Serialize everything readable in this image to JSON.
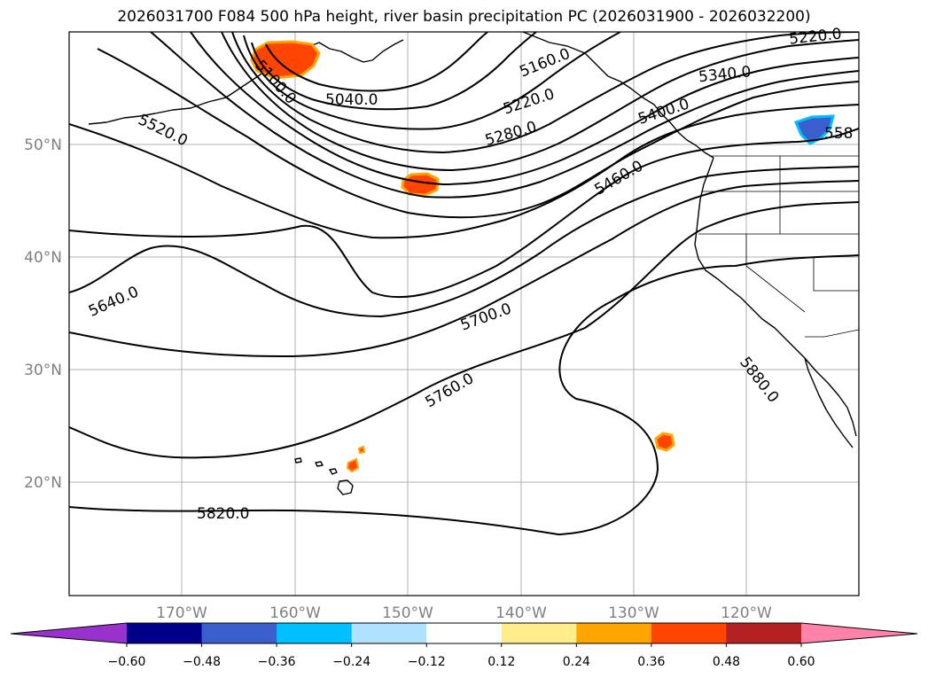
{
  "title": "2026031700 F084 500 hPa height, river basin precipitation PC (2026031900 - 2026032200)",
  "latitude_labels": [
    "50°N",
    "40°N",
    "30°N",
    "20°N"
  ],
  "longitude_labels": [
    "170°W",
    "160°W",
    "150°W",
    "140°W",
    "130°W",
    "120°W"
  ],
  "contour_labels": [
    "5040.0",
    "5100.0",
    "5160.0",
    "5220.0",
    "5220.0",
    "5280.0",
    "5340.0",
    "5400.0",
    "5460.0",
    "5520.0",
    "558",
    "5640.0",
    "5700.0",
    "5760.0",
    "5820.0",
    "5880.0"
  ],
  "colorbar": {
    "tick_labels": [
      "−0.60",
      "−0.48",
      "−0.36",
      "−0.24",
      "−0.12",
      "0.12",
      "0.24",
      "0.36",
      "0.48",
      "0.60"
    ],
    "colors": [
      "#9932cc",
      "#00008b",
      "#3a5fcd",
      "#00bfff",
      "#b0e2ff",
      "#ffffff",
      "#ffec8b",
      "#ffa500",
      "#ff4500",
      "#b22222",
      "#ff82ab"
    ]
  },
  "map_colors": {
    "contour": "#000000",
    "coastline": "#000000",
    "gridline": "#b0b0b0",
    "precip_positive": "#ff4500",
    "precip_positive_edge": "#ffa500",
    "precip_negative": "#3a5fcd",
    "precip_negative_edge": "#00bfff"
  }
}
